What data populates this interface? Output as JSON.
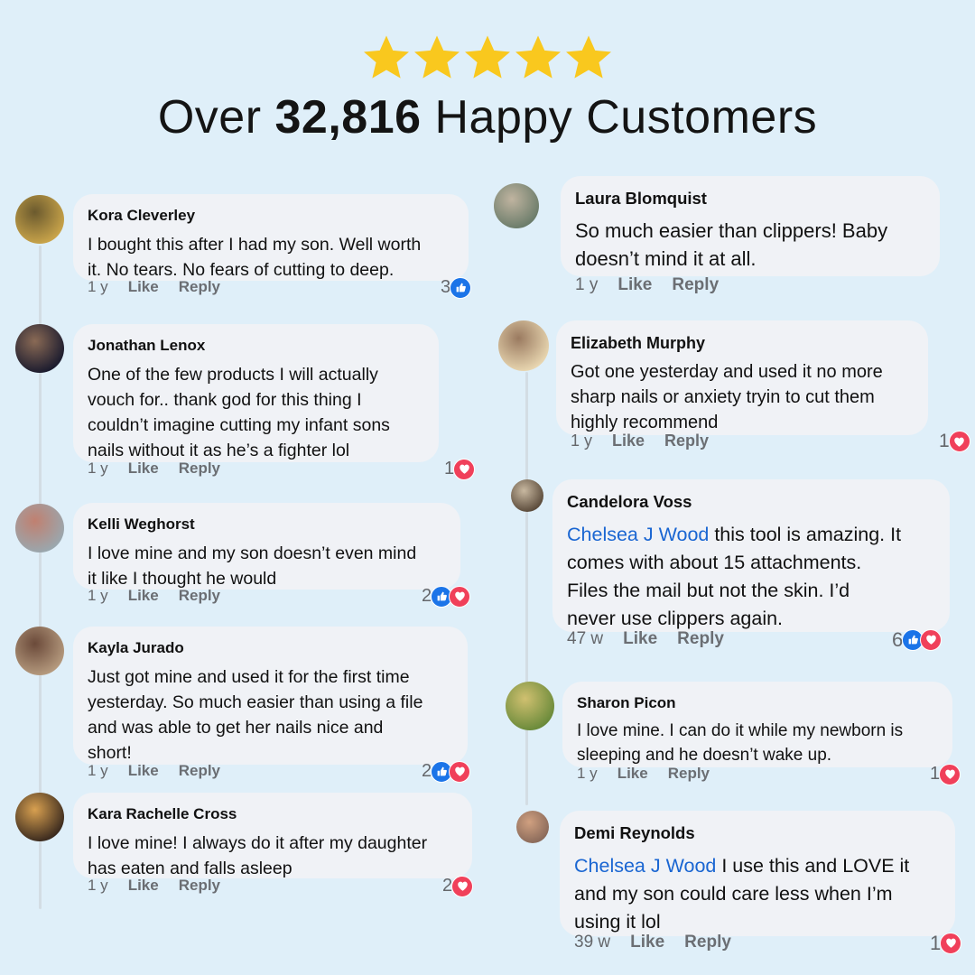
{
  "header": {
    "rating_stars": 5,
    "star_color": "#f9c81e",
    "title_prefix": "Over",
    "title_count": "32,816",
    "title_suffix": "Happy Customers"
  },
  "colors": {
    "background": "#dfeff9",
    "bubble": "#f0f2f6",
    "mention": "#1a66d2",
    "like": "#1b74e8",
    "heart": "#f0405a"
  },
  "labels": {
    "like": "Like",
    "reply": "Reply"
  },
  "comments": [
    {
      "name": "Kora Cleverley",
      "mention": "",
      "lines": [
        "I bought this after I had my son. Well worth",
        "it. No tears. No fears of cutting to deep."
      ],
      "time": "1 y",
      "reaction_count": "3",
      "reactions": [
        "like-icon"
      ]
    },
    {
      "name": "Jonathan Lenox",
      "mention": "",
      "lines": [
        "One of the few products I will actually",
        "vouch for.. thank god for this thing I",
        "couldn’t imagine cutting my infant sons",
        "nails without it as he’s a fighter lol"
      ],
      "time": "1 y",
      "reaction_count": "1",
      "reactions": [
        "heart-icon"
      ]
    },
    {
      "name": "Kelli Weghorst",
      "mention": "",
      "lines": [
        "I love mine and my son doesn’t even mind",
        "it like I thought he would"
      ],
      "time": "1 y",
      "reaction_count": "2",
      "reactions": [
        "like-icon",
        "heart-icon"
      ]
    },
    {
      "name": "Kayla Jurado",
      "mention": "",
      "lines": [
        "Just got mine and used it for the first time",
        "yesterday. So much easier than using a file",
        "and was able to get her nails nice and",
        "short!"
      ],
      "time": "1 y",
      "reaction_count": "2",
      "reactions": [
        "like-icon",
        "heart-icon"
      ]
    },
    {
      "name": "Kara Rachelle Cross",
      "mention": "",
      "lines": [
        "I love mine! I always do it after my daughter",
        "has eaten and falls asleep"
      ],
      "time": "1 y",
      "reaction_count": "2",
      "reactions": [
        "heart-icon"
      ]
    },
    {
      "name": "Laura Blomquist",
      "mention": "",
      "lines": [
        "So much easier than clippers! Baby",
        "doesn’t mind it at all."
      ],
      "time": "1 y",
      "reaction_count": "",
      "reactions": []
    },
    {
      "name": "Elizabeth Murphy",
      "mention": "",
      "lines": [
        "Got one yesterday and used it no more",
        "sharp nails or anxiety tryin to cut them",
        "highly recommend"
      ],
      "time": "1 y",
      "reaction_count": "1",
      "reactions": [
        "heart-icon"
      ]
    },
    {
      "name": "Candelora Voss",
      "mention": "Chelsea J Wood",
      "lines": [
        " this tool is amazing. It",
        "comes with about 15 attachments.",
        "Files the mail but not the skin. I’d",
        "never use clippers again."
      ],
      "time": "47 w",
      "reaction_count": "6",
      "reactions": [
        "like-icon",
        "heart-icon"
      ]
    },
    {
      "name": "Sharon Picon",
      "mention": "",
      "lines": [
        "I love mine. I can do it while my newborn is",
        "sleeping and he doesn’t wake up."
      ],
      "time": "1 y",
      "reaction_count": "1",
      "reactions": [
        "heart-icon"
      ]
    },
    {
      "name": "Demi Reynolds",
      "mention": "Chelsea J Wood",
      "lines": [
        " I use this and LOVE it",
        "and my son could care less when I’m",
        "using it lol"
      ],
      "time": "39 w",
      "reaction_count": "1",
      "reactions": [
        "heart-icon"
      ]
    }
  ]
}
